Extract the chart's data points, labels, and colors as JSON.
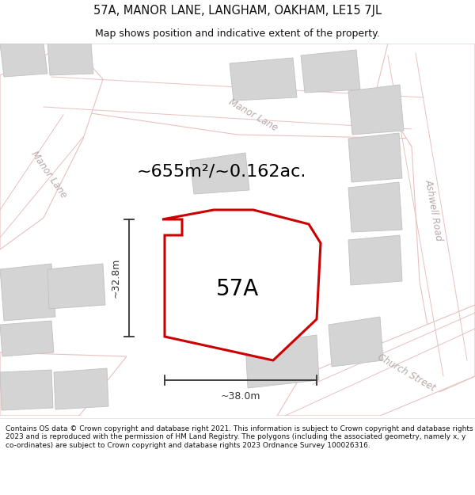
{
  "title": "57A, MANOR LANE, LANGHAM, OAKHAM, LE15 7JL",
  "subtitle": "Map shows position and indicative extent of the property.",
  "area_label": "~655m²/~0.162ac.",
  "plot_label": "57A",
  "dim_width": "~38.0m",
  "dim_height": "~32.8m",
  "footer": "Contains OS data © Crown copyright and database right 2021. This information is subject to Crown copyright and database rights 2023 and is reproduced with the permission of HM Land Registry. The polygons (including the associated geometry, namely x, y co-ordinates) are subject to Crown copyright and database rights 2023 Ordnance Survey 100026316.",
  "bg_color": "#ffffff",
  "map_bg": "#f7f3f3",
  "road_fill": "#ffffff",
  "road_edge": "#e8c0c0",
  "building_fill": "#d4d4d4",
  "building_edge": "#c0c0c0",
  "plot_fill": "#ffffff",
  "plot_edge": "#cc0000",
  "street_label_color": "#b8a8a8",
  "title_color": "#111111",
  "footer_color": "#111111",
  "dim_color": "#333333",
  "title_fontsize": 10.5,
  "subtitle_fontsize": 9,
  "area_fontsize": 16,
  "plot_fontsize": 20,
  "dim_fontsize": 9,
  "street_fontsize": 8.5,
  "footer_fontsize": 6.5
}
